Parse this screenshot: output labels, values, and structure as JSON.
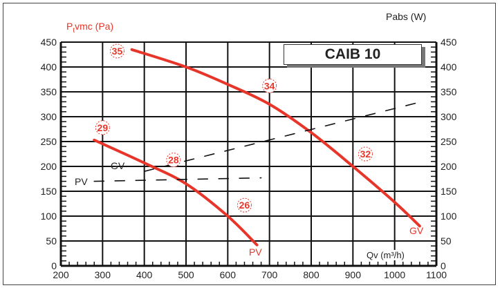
{
  "chart_data": {
    "type": "line",
    "title": "CAIB 10",
    "xlabel": "Qv (m³/h)",
    "ylabel_left": "Ptvmc (Pa)",
    "ylabel_right": "Pabs (W)",
    "xlim": [
      200,
      1100
    ],
    "ylim": [
      0,
      450
    ],
    "xticks": [
      200,
      300,
      400,
      500,
      600,
      700,
      800,
      900,
      1000,
      1100
    ],
    "yticks": [
      0,
      50,
      100,
      150,
      200,
      250,
      300,
      350,
      400,
      450
    ],
    "grid": true,
    "series": [
      {
        "name": "GV pressure",
        "axis": "left",
        "style": "solid",
        "color": "#e8352a",
        "end_label": "GV",
        "x": [
          370,
          500,
          600,
          700,
          800,
          900,
          1000,
          1060
        ],
        "y": [
          435,
          400,
          365,
          325,
          268,
          200,
          128,
          80
        ]
      },
      {
        "name": "PV pressure",
        "axis": "left",
        "style": "solid",
        "color": "#e8352a",
        "end_label": "PV",
        "x": [
          280,
          400,
          500,
          600,
          670
        ],
        "y": [
          253,
          207,
          165,
          100,
          42
        ]
      },
      {
        "name": "GV power",
        "axis": "right",
        "style": "dashed",
        "color": "#111111",
        "start_label": "GV",
        "x": [
          400,
          1050
        ],
        "y": [
          190,
          327
        ]
      },
      {
        "name": "PV power",
        "axis": "right",
        "style": "dashed",
        "color": "#111111",
        "start_label": "PV",
        "x": [
          280,
          680
        ],
        "y": [
          170,
          177
        ]
      }
    ],
    "annotations": [
      {
        "text": "35",
        "x": 335,
        "y": 432
      },
      {
        "text": "34",
        "x": 700,
        "y": 362
      },
      {
        "text": "32",
        "x": 930,
        "y": 225
      },
      {
        "text": "29",
        "x": 300,
        "y": 278
      },
      {
        "text": "28",
        "x": 470,
        "y": 213
      },
      {
        "text": "26",
        "x": 640,
        "y": 122
      }
    ]
  },
  "labels": {
    "title_box": "CAIB 10",
    "left_axis_main": "P",
    "left_axis_sub": "t",
    "left_axis_rest": "vmc (Pa)",
    "right_axis": "Pabs (W)",
    "x_axis": "Qv (m³/h)",
    "gv_dash": "GV",
    "pv_dash": "PV",
    "gv_curve": "GV",
    "pv_curve": "PV"
  },
  "colors": {
    "curve": "#e8352a",
    "grid": "#111111",
    "text": "#222222"
  }
}
